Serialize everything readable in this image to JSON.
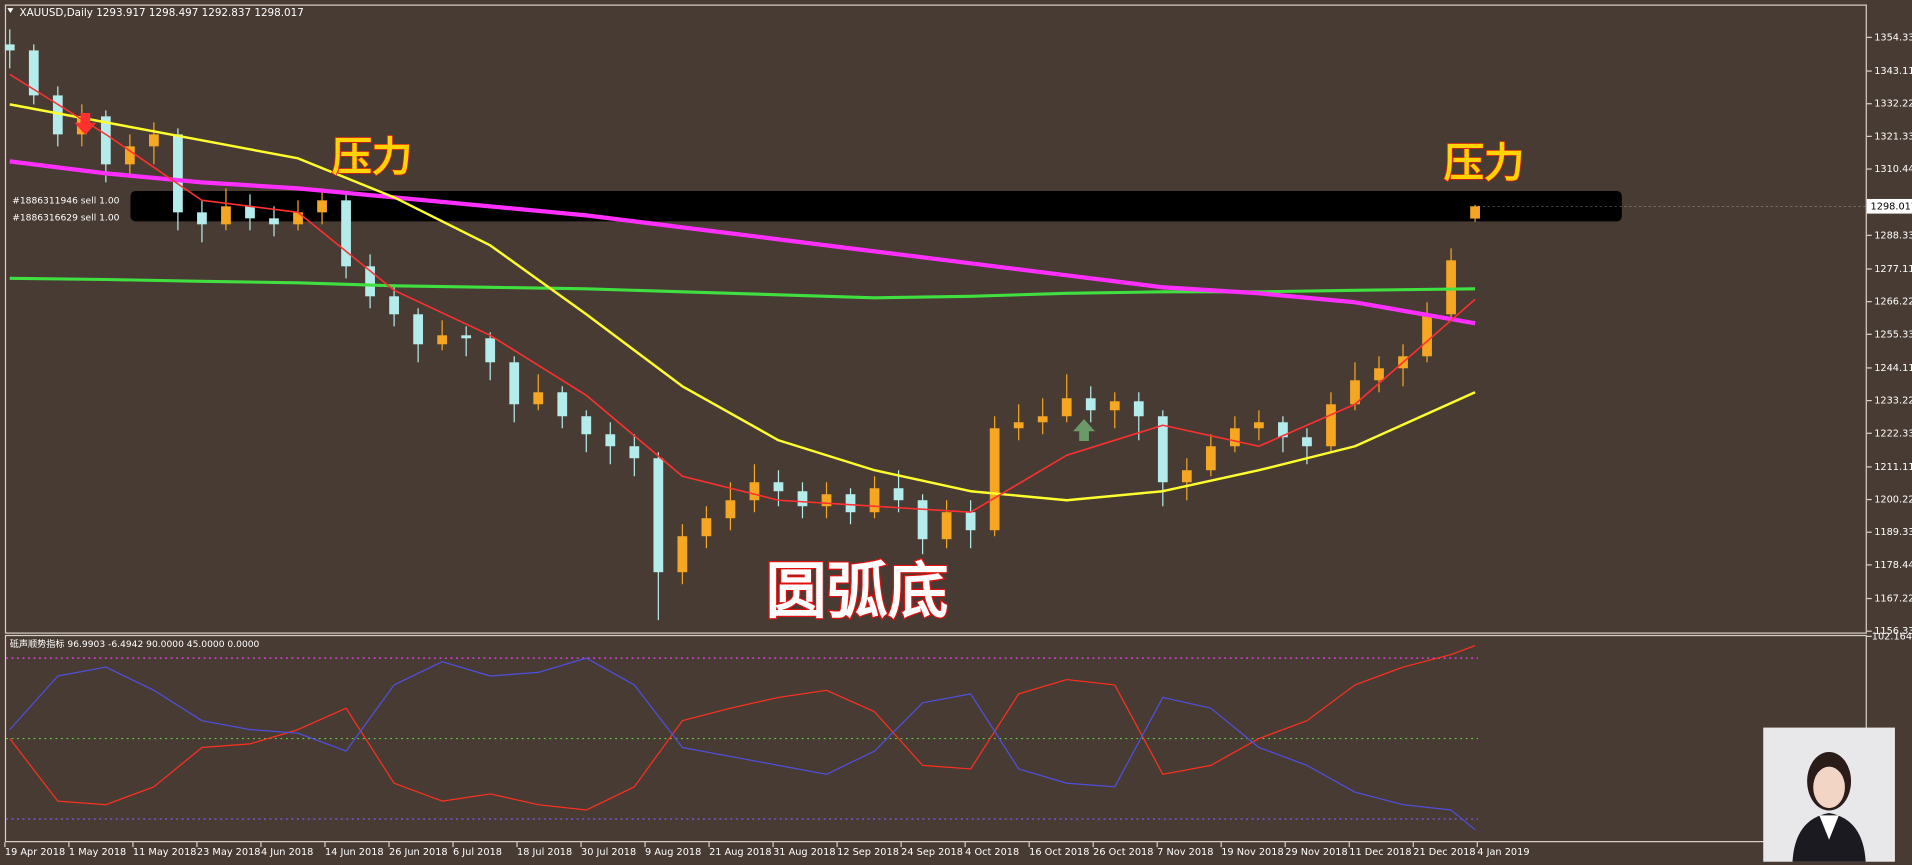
{
  "chart_data": {
    "type": "candlestick",
    "header": "XAUUSD,Daily  1293.917 1298.497 1292.837 1298.017",
    "indicator_header": "砥声顺势指标 96.9903 -6.4942 90.0000 45.0000 0.0000",
    "date_labels": [
      "19 Apr 2018",
      "1 May 2018",
      "11 May 2018",
      "23 May 2018",
      "4 Jun 2018",
      "14 Jun 2018",
      "26 Jun 2018",
      "6 Jul 2018",
      "18 Jul 2018",
      "30 Jul 2018",
      "9 Aug 2018",
      "21 Aug 2018",
      "31 Aug 2018",
      "12 Sep 2018",
      "24 Sep 2018",
      "4 Oct 2018",
      "16 Oct 2018",
      "26 Oct 2018",
      "7 Nov 2018",
      "19 Nov 2018",
      "29 Nov 2018",
      "11 Dec 2018",
      "21 Dec 2018",
      "4 Jan 2019"
    ],
    "ylim": [
      1155.9,
      1364.9
    ],
    "yticks": [
      {
        "value": 1354.33,
        "label": "1354.330"
      },
      {
        "value": 1343.11,
        "label": "1343.110"
      },
      {
        "value": 1332.22,
        "label": "1332.220"
      },
      {
        "value": 1321.33,
        "label": "1321.330"
      },
      {
        "value": 1310.44,
        "label": "1310.440"
      },
      {
        "value": 1288.33,
        "label": "1288.330"
      },
      {
        "value": 1277.11,
        "label": "1277.110"
      },
      {
        "value": 1266.22,
        "label": "1266.220"
      },
      {
        "value": 1255.33,
        "label": "1255.330"
      },
      {
        "value": 1244.11,
        "label": "1244.110"
      },
      {
        "value": 1233.22,
        "label": "1233.220"
      },
      {
        "value": 1222.33,
        "label": "1222.330"
      },
      {
        "value": 1211.11,
        "label": "1211.110"
      },
      {
        "value": 1200.22,
        "label": "1200.220"
      },
      {
        "value": 1189.33,
        "label": "1189.330"
      },
      {
        "value": 1178.44,
        "label": "1178.440"
      },
      {
        "value": 1167.22,
        "label": "1167.220"
      },
      {
        "value": 1156.33,
        "label": "1156.330"
      }
    ],
    "last_price": 1298.017,
    "up_color": "#f5a623",
    "down_color": "#b4ecec",
    "candles": [
      [
        1352,
        1357,
        1344,
        1350
      ],
      [
        1350,
        1352,
        1332,
        1335
      ],
      [
        1335,
        1338,
        1318,
        1322
      ],
      [
        1322,
        1332,
        1318,
        1328
      ],
      [
        1328,
        1330,
        1306,
        1312
      ],
      [
        1312,
        1322,
        1308,
        1318
      ],
      [
        1318,
        1326,
        1312,
        1322
      ],
      [
        1322,
        1324,
        1290,
        1296
      ],
      [
        1296,
        1300,
        1286,
        1292
      ],
      [
        1292,
        1304,
        1290,
        1298
      ],
      [
        1298,
        1302,
        1290,
        1294
      ],
      [
        1294,
        1298,
        1288,
        1292
      ],
      [
        1292,
        1300,
        1290,
        1296
      ],
      [
        1296,
        1304,
        1292,
        1300
      ],
      [
        1300,
        1302,
        1274,
        1278
      ],
      [
        1278,
        1282,
        1264,
        1268
      ],
      [
        1268,
        1272,
        1258,
        1262
      ],
      [
        1262,
        1264,
        1246,
        1252
      ],
      [
        1252,
        1260,
        1250,
        1255
      ],
      [
        1255,
        1258,
        1248,
        1254
      ],
      [
        1254,
        1256,
        1240,
        1246
      ],
      [
        1246,
        1248,
        1226,
        1232
      ],
      [
        1232,
        1242,
        1230,
        1236
      ],
      [
        1236,
        1238,
        1224,
        1228
      ],
      [
        1228,
        1230,
        1216,
        1222
      ],
      [
        1222,
        1226,
        1212,
        1218
      ],
      [
        1218,
        1222,
        1208,
        1214
      ],
      [
        1214,
        1216,
        1160,
        1176
      ],
      [
        1176,
        1192,
        1172,
        1188
      ],
      [
        1188,
        1198,
        1184,
        1194
      ],
      [
        1194,
        1206,
        1190,
        1200
      ],
      [
        1200,
        1212,
        1196,
        1206
      ],
      [
        1206,
        1210,
        1198,
        1203
      ],
      [
        1203,
        1206,
        1194,
        1198
      ],
      [
        1198,
        1206,
        1194,
        1202
      ],
      [
        1202,
        1204,
        1192,
        1196
      ],
      [
        1196,
        1208,
        1194,
        1204
      ],
      [
        1204,
        1210,
        1196,
        1200
      ],
      [
        1200,
        1202,
        1182,
        1187
      ],
      [
        1187,
        1200,
        1184,
        1196
      ],
      [
        1196,
        1200,
        1184,
        1190
      ],
      [
        1190,
        1228,
        1188,
        1224
      ],
      [
        1224,
        1232,
        1220,
        1226
      ],
      [
        1226,
        1234,
        1222,
        1228
      ],
      [
        1228,
        1242,
        1226,
        1234
      ],
      [
        1234,
        1238,
        1226,
        1230
      ],
      [
        1230,
        1236,
        1224,
        1233
      ],
      [
        1233,
        1236,
        1220,
        1228
      ],
      [
        1228,
        1230,
        1198,
        1206
      ],
      [
        1206,
        1214,
        1200,
        1210
      ],
      [
        1210,
        1222,
        1208,
        1218
      ],
      [
        1218,
        1228,
        1216,
        1224
      ],
      [
        1224,
        1230,
        1220,
        1226
      ],
      [
        1226,
        1228,
        1216,
        1221
      ],
      [
        1221,
        1224,
        1212,
        1218
      ],
      [
        1218,
        1236,
        1216,
        1232
      ],
      [
        1232,
        1246,
        1230,
        1240
      ],
      [
        1240,
        1248,
        1236,
        1244
      ],
      [
        1244,
        1252,
        1238,
        1248
      ],
      [
        1248,
        1266,
        1246,
        1262
      ],
      [
        1262,
        1284,
        1260,
        1280
      ],
      [
        1293.917,
        1298.497,
        1292.837,
        1298.017
      ]
    ],
    "ma_x": [
      0,
      4,
      8,
      12,
      16,
      20,
      24,
      28,
      32,
      36,
      40,
      44,
      48,
      52,
      56,
      61
    ],
    "moving_averages": [
      {
        "color": "#40e040",
        "values": [
          1274,
          1273.6,
          1273,
          1272.5,
          1271.5,
          1271,
          1270.5,
          1269.5,
          1268.5,
          1267.5,
          1268,
          1269,
          1269.5,
          1269.5,
          1270,
          1270.5
        ]
      },
      {
        "color": "#ff30ff",
        "values": [
          1313,
          1309,
          1306,
          1304,
          1301,
          1298,
          1295,
          1291,
          1287,
          1283,
          1279,
          1275,
          1271,
          1269,
          1266,
          1259
        ]
      },
      {
        "color": "#ffff30",
        "values": [
          1332,
          1326,
          1320,
          1314,
          1301,
          1285,
          1262,
          1238,
          1220,
          1210,
          1203,
          1200,
          1203,
          1210,
          1218,
          1236
        ]
      },
      {
        "color": "#ff3030",
        "values": [
          1342,
          1322,
          1300,
          1296,
          1270,
          1255,
          1235,
          1208,
          1200,
          1198,
          1196,
          1215,
          1225,
          1218,
          1232,
          1267
        ]
      }
    ],
    "resistance_zone": [
      1293,
      1303.1
    ],
    "annotations": [
      "压力",
      "压力",
      "圆弧底"
    ],
    "orders": [
      "#1886311946 sell 1.00",
      "#1886316629 sell 1.00"
    ],
    "y2lim": [
      -13,
      102.3
    ],
    "y2ticks": [
      102.1645
    ],
    "levels": [
      {
        "value": 90,
        "color": "#ff40ff"
      },
      {
        "value": 45,
        "color": "#60d040"
      },
      {
        "value": 0,
        "color": "#8060ff"
      }
    ],
    "ind_x": [
      0,
      2,
      4,
      6,
      8,
      10,
      12,
      14,
      16,
      18,
      20,
      22,
      24,
      26,
      28,
      30,
      32,
      34,
      36,
      38,
      40,
      42,
      44,
      46,
      48,
      50,
      52,
      54,
      56,
      58,
      60,
      61
    ],
    "ind_series": [
      {
        "color": "#ff3020",
        "values": [
          45,
          10,
          8,
          18,
          40,
          42,
          50,
          62,
          20,
          10,
          14,
          8,
          5,
          18,
          55,
          62,
          68,
          72,
          60,
          30,
          28,
          70,
          78,
          75,
          25,
          30,
          45,
          55,
          75,
          85,
          92,
          97
        ]
      },
      {
        "color": "#5050e0",
        "values": [
          50,
          80,
          85,
          72,
          55,
          50,
          48,
          38,
          75,
          88,
          80,
          82,
          90,
          75,
          40,
          35,
          30,
          25,
          38,
          65,
          70,
          28,
          20,
          18,
          68,
          62,
          40,
          30,
          15,
          8,
          5,
          -6
        ]
      }
    ]
  }
}
